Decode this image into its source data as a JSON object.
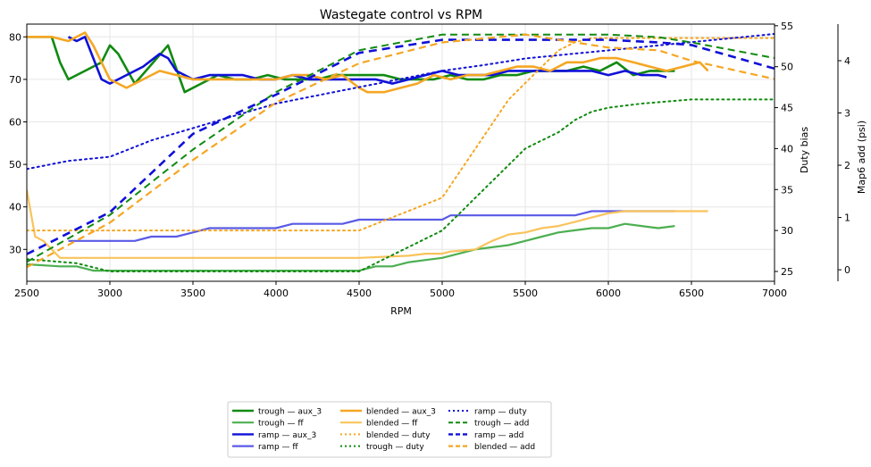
{
  "chart_data": {
    "type": "line",
    "title": "Wastegate control vs RPM",
    "xlabel": "RPM",
    "ylabel": "",
    "y2label": "Duty bias",
    "y3label": "Map6 add (psi)",
    "xlim": [
      2500,
      7000
    ],
    "ylim": [
      22.5,
      83
    ],
    "y2lim": [
      23.8,
      55.2
    ],
    "y3lim": [
      -0.22,
      4.7
    ],
    "xticks": [
      2500,
      3000,
      3500,
      4000,
      4500,
      5000,
      5500,
      6000,
      6500,
      7000
    ],
    "yticks": [
      30,
      40,
      50,
      60,
      70,
      80
    ],
    "y2ticks": [
      25,
      30,
      35,
      40,
      45,
      50,
      55
    ],
    "y3ticks": [
      0,
      1,
      2,
      3,
      4
    ],
    "grid": true,
    "legend_position": "bottom-center",
    "legend_columns": 3,
    "colors": {
      "trough": "#118a11",
      "trough_light": "#4caf50",
      "ramp": "#1010d8",
      "ramp_light": "#5a5ae6",
      "blended": "#f5a623",
      "blended_light": "#f9c35c"
    },
    "series": [
      {
        "name": "trough — aux_3",
        "axis": "left",
        "color": "#118a11",
        "width": 2.6,
        "dash": "",
        "x": [
          2500,
          2650,
          2700,
          2750,
          2850,
          2950,
          3000,
          3050,
          3150,
          3350,
          3450,
          3550,
          3650,
          3750,
          3850,
          3950,
          4050,
          4150,
          4250,
          4350,
          4450,
          4550,
          4650,
          4750,
          4850,
          4950,
          5050,
          5150,
          5250,
          5350,
          5450,
          5550,
          5650,
          5750,
          5850,
          5950,
          6050,
          6150,
          6250,
          6400
        ],
        "y": [
          80,
          80,
          74,
          70,
          72,
          74,
          78,
          76,
          69,
          78,
          67,
          69,
          71,
          70,
          70,
          71,
          70,
          70,
          70,
          71,
          71,
          71,
          71,
          70,
          70,
          70,
          71,
          70,
          70,
          71,
          71,
          72,
          72,
          72,
          73,
          72,
          74,
          71,
          72,
          72
        ]
      },
      {
        "name": "trough — ff",
        "axis": "left",
        "color": "#4caf50",
        "width": 2.2,
        "dash": "",
        "x": [
          2500,
          2700,
          2800,
          2900,
          3000,
          3500,
          4000,
          4500,
          4600,
          4700,
          4800,
          4900,
          5000,
          5100,
          5200,
          5300,
          5400,
          5500,
          5600,
          5700,
          5800,
          5900,
          6000,
          6100,
          6200,
          6300,
          6400
        ],
        "y": [
          26.5,
          26,
          26,
          25,
          25,
          25,
          25,
          25,
          26,
          26,
          27,
          27.5,
          28,
          29,
          30,
          30.5,
          31,
          32,
          33,
          34,
          34.5,
          35,
          35,
          36,
          35.5,
          35,
          35.5
        ]
      },
      {
        "name": "ramp — aux_3",
        "axis": "left",
        "color": "#1010d8",
        "width": 2.6,
        "dash": "",
        "x": [
          2750,
          2800,
          2850,
          2950,
          3000,
          3100,
          3200,
          3300,
          3350,
          3400,
          3500,
          3600,
          3700,
          3800,
          3900,
          4000,
          4100,
          4200,
          4300,
          4400,
          4500,
          4600,
          4700,
          4800,
          4900,
          5000,
          5100,
          5200,
          5300,
          5400,
          5500,
          5600,
          5700,
          5800,
          5900,
          6000,
          6100,
          6200,
          6300,
          6350
        ],
        "y": [
          80,
          79,
          80,
          70,
          69,
          71,
          73,
          76,
          75,
          72,
          70,
          71,
          71,
          71,
          70,
          70,
          71,
          70,
          70,
          70,
          70,
          70,
          69,
          70,
          71,
          72,
          71,
          71,
          71,
          72,
          72,
          72,
          72,
          72,
          72,
          71,
          72,
          71,
          71,
          70.5
        ]
      },
      {
        "name": "ramp — ff",
        "axis": "left",
        "color": "#5a5ae6",
        "width": 2.2,
        "dash": "",
        "x": [
          2750,
          2800,
          3150,
          3250,
          3400,
          3500,
          3600,
          4000,
          4100,
          4400,
          4500,
          5000,
          5050,
          5800,
          5850,
          5900,
          6000,
          6100,
          6400
        ],
        "y": [
          32,
          32,
          32,
          33,
          33,
          34,
          35,
          35,
          36,
          36,
          37,
          37,
          38,
          38,
          38.5,
          39,
          39,
          39,
          39
        ]
      },
      {
        "name": "blended — aux_3",
        "axis": "left",
        "color": "#f5a623",
        "width": 2.6,
        "dash": "",
        "x": [
          2500,
          2650,
          2750,
          2850,
          2900,
          3000,
          3100,
          3200,
          3300,
          3400,
          3500,
          3600,
          3700,
          3800,
          3900,
          4000,
          4100,
          4200,
          4300,
          4400,
          4500,
          4550,
          4650,
          4750,
          4850,
          4950,
          5050,
          5150,
          5250,
          5350,
          5450,
          5550,
          5650,
          5750,
          5850,
          5950,
          6050,
          6150,
          6250,
          6350,
          6450,
          6550,
          6600
        ],
        "y": [
          80,
          80,
          79,
          81,
          78,
          70,
          68,
          70,
          72,
          71,
          70,
          70,
          70,
          70,
          70,
          70,
          71,
          71,
          70,
          71,
          68,
          67,
          67,
          68,
          69,
          71,
          70,
          71,
          71,
          72,
          73,
          73,
          72,
          74,
          74,
          75,
          75,
          74,
          73,
          72,
          73,
          74,
          72
        ]
      },
      {
        "name": "blended — ff",
        "axis": "left",
        "color": "#f9c35c",
        "width": 2.2,
        "dash": "",
        "x": [
          2500,
          2550,
          2600,
          2650,
          2700,
          3500,
          4000,
          4500,
          4800,
          4900,
          5000,
          5050,
          5200,
          5250,
          5300,
          5400,
          5500,
          5600,
          5700,
          5800,
          5900,
          6000,
          6100,
          6200,
          6400,
          6600
        ],
        "y": [
          44,
          33,
          32,
          30,
          28,
          28,
          28,
          28,
          28.5,
          29,
          29,
          29.5,
          30,
          31,
          32,
          33.5,
          34,
          35,
          35.5,
          36.5,
          37.5,
          38.5,
          39,
          39,
          39,
          39
        ]
      },
      {
        "name": "blended — duty",
        "axis": "right",
        "color": "#f5a623",
        "width": 2.0,
        "dash": "2,4",
        "x": [
          2500,
          3000,
          3500,
          4000,
          4500,
          5000,
          5100,
          5200,
          5300,
          5400,
          5500,
          5600,
          5700,
          5800,
          5900,
          6000,
          6200,
          6400,
          6600,
          6800,
          7000
        ],
        "y": [
          30,
          30,
          30,
          30,
          30,
          34,
          37,
          40,
          43,
          46,
          48,
          50,
          52,
          53,
          53.5,
          53.5,
          53.5,
          53.5,
          53.5,
          53.5,
          53.5
        ]
      },
      {
        "name": "trough — duty",
        "axis": "right",
        "color": "#118a11",
        "width": 2.0,
        "dash": "2,4",
        "x": [
          2500,
          2800,
          3000,
          3500,
          4000,
          4500,
          4700,
          4900,
          5000,
          5100,
          5200,
          5300,
          5400,
          5500,
          5600,
          5700,
          5800,
          5900,
          6000,
          6200,
          6500,
          7000
        ],
        "y": [
          26.5,
          26,
          25,
          25,
          25,
          25,
          27,
          29,
          30,
          32,
          34,
          36,
          38,
          40,
          41,
          42,
          43.5,
          44.5,
          45,
          45.5,
          46,
          46
        ]
      },
      {
        "name": "ramp — duty",
        "axis": "right",
        "color": "#1010d8",
        "width": 2.0,
        "dash": "2,4",
        "x": [
          2500,
          2750,
          3000,
          3250,
          3500,
          3750,
          4000,
          4250,
          4500,
          4750,
          5000,
          5250,
          5500,
          5750,
          6000,
          6250,
          6500,
          6750,
          7000
        ],
        "y": [
          37.5,
          38.5,
          39,
          41,
          42.5,
          44,
          45.5,
          46.5,
          47.5,
          48.5,
          49.5,
          50.2,
          51,
          51.5,
          52,
          52.5,
          53,
          53.5,
          54
        ]
      },
      {
        "name": "trough — add",
        "axis": "map",
        "color": "#118a11",
        "width": 2.0,
        "dash": "8,5",
        "x": [
          2500,
          3000,
          3500,
          4000,
          4500,
          5000,
          5500,
          6000,
          6300,
          6500,
          7000
        ],
        "y": [
          0.15,
          1.05,
          2.3,
          3.4,
          4.2,
          4.5,
          4.5,
          4.5,
          4.45,
          4.35,
          4.05
        ]
      },
      {
        "name": "ramp — add",
        "axis": "map",
        "color": "#1010d8",
        "width": 2.6,
        "dash": "9,6",
        "x": [
          2500,
          3000,
          3500,
          4000,
          4500,
          5000,
          5500,
          6000,
          6300,
          6500,
          7000
        ],
        "y": [
          0.3,
          1.1,
          2.6,
          3.35,
          4.15,
          4.4,
          4.4,
          4.4,
          4.35,
          4.3,
          3.85
        ]
      },
      {
        "name": "blended — add",
        "axis": "map",
        "color": "#f5a623",
        "width": 2.2,
        "dash": "8,5",
        "x": [
          2500,
          3000,
          3500,
          4000,
          4500,
          5000,
          5500,
          6000,
          6300,
          6500,
          7000
        ],
        "y": [
          0.05,
          0.9,
          2.1,
          3.2,
          3.95,
          4.35,
          4.5,
          4.25,
          4.2,
          4.0,
          3.65
        ]
      }
    ]
  }
}
